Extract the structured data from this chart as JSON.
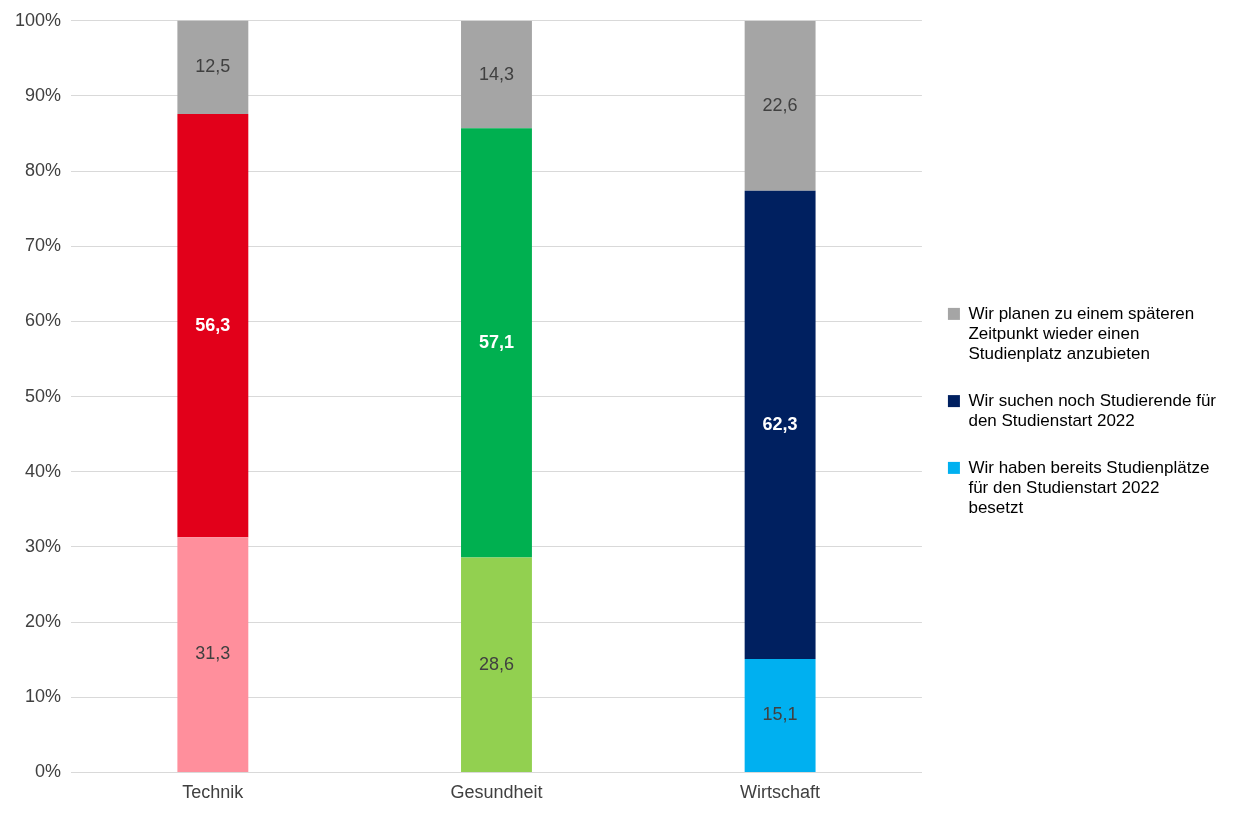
{
  "chart_data": {
    "type": "bar",
    "stacked": true,
    "categories": [
      "Technik",
      "Gesundheit",
      "Wirtschaft"
    ],
    "series": [
      {
        "name": "Wir haben bereits Studienplätze für den Studienstart 2022 besetzt",
        "color": "#00b0f0",
        "colors": [
          "#ff8f9c",
          "#92d050",
          "#00b0f0"
        ],
        "values": [
          31.3,
          28.6,
          15.1
        ],
        "value_labels": [
          "31,3",
          "28,6",
          "15,1"
        ]
      },
      {
        "name": "Wir suchen noch Studierende für den Studienstart 2022",
        "color": "#002060",
        "colors": [
          "#e2001a",
          "#00b050",
          "#002060"
        ],
        "values": [
          56.3,
          57.1,
          62.3
        ],
        "value_labels": [
          "56,3",
          "57,1",
          "62,3"
        ]
      },
      {
        "name": "Wir planen zu einem späteren Zeitpunkt wieder einen Studienplatz anzubieten",
        "color": "#a5a5a5",
        "colors": [
          "#a5a5a5",
          "#a5a5a5",
          "#a5a5a5"
        ],
        "values": [
          12.5,
          14.3,
          22.6
        ],
        "value_labels": [
          "12,5",
          "14,3",
          "22,6"
        ]
      }
    ],
    "ylim": [
      0,
      100
    ],
    "yticks": [
      {
        "value": 0,
        "label": "0%"
      },
      {
        "value": 10,
        "label": "10%"
      },
      {
        "value": 20,
        "label": "20%"
      },
      {
        "value": 30,
        "label": "30%"
      },
      {
        "value": 40,
        "label": "40%"
      },
      {
        "value": 50,
        "label": "50%"
      },
      {
        "value": 60,
        "label": "60%"
      },
      {
        "value": 70,
        "label": "70%"
      },
      {
        "value": 80,
        "label": "80%"
      },
      {
        "value": 90,
        "label": "90%"
      },
      {
        "value": 100,
        "label": "100%"
      }
    ],
    "grid": "y",
    "legend": "right"
  }
}
